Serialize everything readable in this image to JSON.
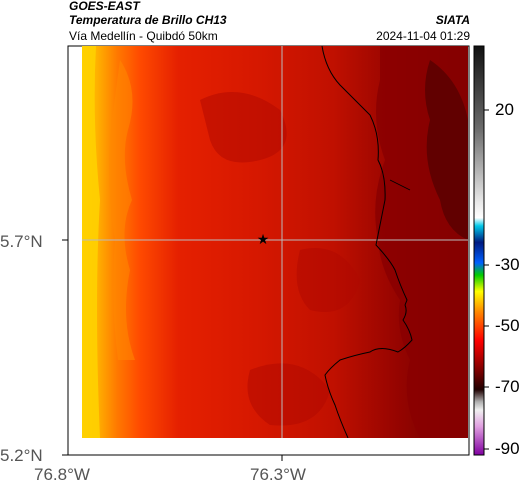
{
  "header": {
    "satellite": "GOES-EAST",
    "product": "Temperatura de Brillo CH13",
    "region": "Vía Medellín - Quibdó 50km",
    "agency": "SIATA",
    "timestamp": "2024-11-04 01:29"
  },
  "axes": {
    "x_ticks": [
      "76.8°W",
      "76.3°W"
    ],
    "y_ticks": [
      "5.7°N",
      "5.2°N"
    ]
  },
  "colorbar": {
    "ticks": [
      "20",
      "-30",
      "-50",
      "-70",
      "-90"
    ],
    "range": [
      -95,
      40
    ]
  },
  "map": {
    "marker": "star-marker",
    "marker_lon": -76.33,
    "marker_lat": 5.7,
    "lon_range": [
      -76.8,
      -76.05
    ],
    "lat_range": [
      5.2,
      6.05
    ]
  },
  "colors": {
    "dark_red": "#5a0000",
    "red": "#cc1100",
    "orange": "#ff6a00",
    "yellow": "#ffcc00"
  }
}
